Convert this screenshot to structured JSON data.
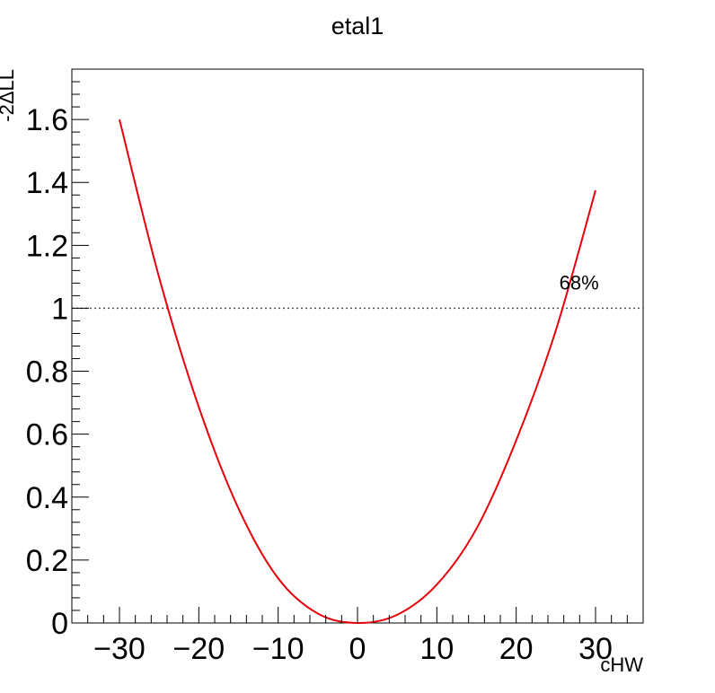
{
  "chart_data": {
    "type": "line",
    "title": "etal1",
    "xlabel": "cHW",
    "ylabel": "-2ΔLL",
    "xlim": [
      -36,
      36
    ],
    "ylim": [
      0,
      1.76
    ],
    "xticks": [
      -30,
      -20,
      -10,
      0,
      10,
      20,
      30
    ],
    "xtick_labels": [
      "−30",
      "−20",
      "−10",
      "0",
      "10",
      "20",
      "30"
    ],
    "yticks": [
      0,
      0.2,
      0.4,
      0.6,
      0.8,
      1,
      1.2,
      1.4,
      1.6
    ],
    "ytick_labels": [
      "0",
      "0.2",
      "0.4",
      "0.6",
      "0.8",
      "1",
      "1.2",
      "1.4",
      "1.6"
    ],
    "series": [
      {
        "color": "#e8000b",
        "x": [
          -30,
          -25,
          -20,
          -15,
          -10,
          -5,
          0,
          5,
          10,
          15,
          20,
          25,
          30
        ],
        "y": [
          1.6,
          1.098,
          0.686,
          0.364,
          0.142,
          0.03,
          0.0,
          0.026,
          0.122,
          0.3,
          0.58,
          0.93,
          1.375
        ]
      }
    ],
    "reference_line": {
      "y": 1,
      "style": "dotted",
      "color": "#555555"
    },
    "annotations": [
      {
        "text": "68%",
        "x": 26.0,
        "y": 1.04
      }
    ],
    "grid": false,
    "legend": "none"
  }
}
